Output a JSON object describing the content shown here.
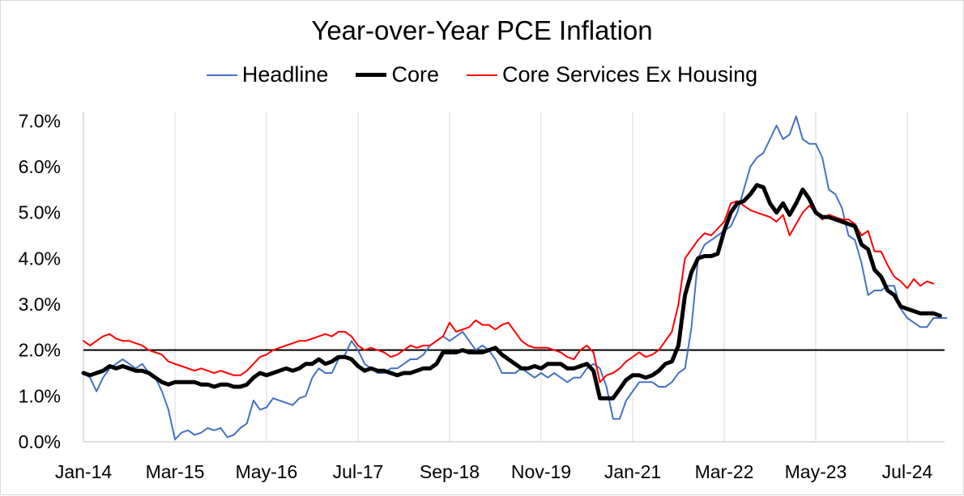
{
  "chart_data": {
    "type": "line",
    "title": "Year-over-Year PCE Inflation",
    "xlabel": "",
    "ylabel": "",
    "x_start": "Jan-14",
    "x_ticks": [
      "Jan-14",
      "Mar-15",
      "May-16",
      "Jul-17",
      "Sep-18",
      "Nov-19",
      "Jan-21",
      "Mar-22",
      "May-23",
      "Jul-24"
    ],
    "y_ticks": [
      "0.0%",
      "1.0%",
      "2.0%",
      "3.0%",
      "4.0%",
      "5.0%",
      "6.0%",
      "7.0%"
    ],
    "ylim": [
      0,
      7.2
    ],
    "reference_line": 2.0,
    "grid": "vertical",
    "legend": "top-center",
    "series": [
      {
        "name": "Headline",
        "color": "#4472c4",
        "values": [
          1.5,
          1.4,
          1.1,
          1.4,
          1.6,
          1.7,
          1.8,
          1.7,
          1.6,
          1.7,
          1.5,
          1.4,
          1.1,
          0.7,
          0.05,
          0.2,
          0.25,
          0.15,
          0.2,
          0.3,
          0.25,
          0.3,
          0.1,
          0.15,
          0.3,
          0.4,
          0.9,
          0.7,
          0.75,
          0.95,
          0.9,
          0.85,
          0.8,
          0.95,
          1.0,
          1.4,
          1.6,
          1.5,
          1.5,
          1.8,
          1.9,
          2.2,
          2.0,
          1.7,
          1.6,
          1.5,
          1.5,
          1.6,
          1.6,
          1.7,
          1.8,
          1.8,
          1.9,
          2.1,
          2.2,
          2.3,
          2.2,
          2.3,
          2.4,
          2.2,
          2.0,
          2.1,
          2.0,
          1.8,
          1.5,
          1.5,
          1.5,
          1.6,
          1.5,
          1.4,
          1.5,
          1.4,
          1.5,
          1.4,
          1.3,
          1.4,
          1.4,
          1.6,
          1.7,
          1.6,
          1.2,
          0.5,
          0.5,
          0.9,
          1.1,
          1.3,
          1.3,
          1.3,
          1.2,
          1.2,
          1.3,
          1.5,
          1.6,
          2.5,
          4.0,
          4.3,
          4.4,
          4.5,
          4.6,
          4.7,
          5.0,
          5.5,
          6.0,
          6.2,
          6.3,
          6.6,
          6.9,
          6.6,
          6.7,
          7.1,
          6.6,
          6.5,
          6.5,
          6.2,
          5.5,
          5.4,
          5.1,
          4.5,
          4.4,
          3.9,
          3.2,
          3.3,
          3.3,
          3.4,
          3.4,
          2.9,
          2.7,
          2.6,
          2.5,
          2.5,
          2.7,
          2.7,
          2.7
        ]
      },
      {
        "name": "Core",
        "color": "#000000",
        "values": [
          1.5,
          1.45,
          1.5,
          1.55,
          1.65,
          1.6,
          1.65,
          1.6,
          1.55,
          1.55,
          1.5,
          1.4,
          1.3,
          1.25,
          1.3,
          1.3,
          1.3,
          1.3,
          1.25,
          1.25,
          1.2,
          1.25,
          1.25,
          1.2,
          1.2,
          1.25,
          1.4,
          1.5,
          1.45,
          1.5,
          1.55,
          1.6,
          1.55,
          1.6,
          1.7,
          1.7,
          1.8,
          1.7,
          1.75,
          1.85,
          1.85,
          1.8,
          1.65,
          1.55,
          1.6,
          1.55,
          1.55,
          1.5,
          1.45,
          1.5,
          1.5,
          1.55,
          1.6,
          1.6,
          1.7,
          1.95,
          1.95,
          1.95,
          2.0,
          1.95,
          1.95,
          1.95,
          2.0,
          2.05,
          1.9,
          1.8,
          1.7,
          1.6,
          1.6,
          1.65,
          1.6,
          1.7,
          1.7,
          1.7,
          1.6,
          1.6,
          1.65,
          1.7,
          1.55,
          0.95,
          0.95,
          0.95,
          1.15,
          1.35,
          1.45,
          1.45,
          1.4,
          1.45,
          1.55,
          1.7,
          1.75,
          2.1,
          3.2,
          3.7,
          4.0,
          4.05,
          4.05,
          4.1,
          4.6,
          5.0,
          5.2,
          5.25,
          5.4,
          5.6,
          5.55,
          5.2,
          5.0,
          5.2,
          4.95,
          5.2,
          5.5,
          5.3,
          5.0,
          4.9,
          4.9,
          4.85,
          4.8,
          4.75,
          4.7,
          4.3,
          4.2,
          3.75,
          3.6,
          3.3,
          3.2,
          2.95,
          2.9,
          2.85,
          2.8,
          2.8,
          2.8,
          2.75
        ]
      },
      {
        "name": "Core Services Ex Housing",
        "color": "#ff0000",
        "values": [
          2.2,
          2.1,
          2.2,
          2.3,
          2.35,
          2.25,
          2.2,
          2.2,
          2.15,
          2.1,
          2.0,
          1.95,
          1.9,
          1.75,
          1.7,
          1.65,
          1.6,
          1.55,
          1.6,
          1.55,
          1.5,
          1.55,
          1.5,
          1.45,
          1.45,
          1.55,
          1.7,
          1.85,
          1.9,
          2.0,
          2.05,
          2.1,
          2.15,
          2.2,
          2.2,
          2.25,
          2.3,
          2.35,
          2.3,
          2.4,
          2.4,
          2.3,
          2.1,
          2.0,
          2.05,
          2.0,
          1.95,
          1.85,
          1.9,
          2.0,
          2.1,
          2.05,
          2.1,
          2.1,
          2.2,
          2.3,
          2.6,
          2.4,
          2.45,
          2.5,
          2.65,
          2.55,
          2.55,
          2.45,
          2.55,
          2.6,
          2.4,
          2.2,
          2.1,
          2.05,
          2.05,
          2.05,
          2.0,
          1.95,
          1.85,
          1.8,
          2.0,
          2.1,
          1.95,
          1.3,
          1.45,
          1.5,
          1.6,
          1.75,
          1.85,
          1.95,
          1.85,
          1.9,
          2.0,
          2.2,
          2.4,
          3.0,
          4.0,
          4.2,
          4.4,
          4.55,
          4.5,
          4.65,
          4.8,
          5.2,
          5.25,
          5.15,
          5.05,
          5.0,
          4.95,
          4.9,
          4.8,
          4.95,
          4.5,
          4.75,
          5.0,
          5.15,
          5.0,
          4.85,
          4.95,
          4.9,
          4.85,
          4.85,
          4.75,
          4.5,
          4.6,
          4.15,
          4.15,
          3.85,
          3.6,
          3.5,
          3.35,
          3.55,
          3.4,
          3.5,
          3.45
        ]
      }
    ]
  }
}
